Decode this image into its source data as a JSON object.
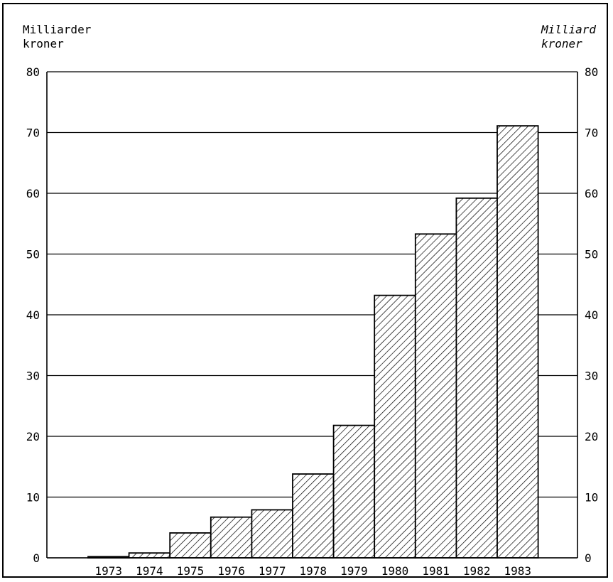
{
  "chart_data": {
    "type": "bar",
    "categories": [
      "1973",
      "1974",
      "1975",
      "1976",
      "1977",
      "1978",
      "1979",
      "1980",
      "1981",
      "1982",
      "1983"
    ],
    "values": [
      0.2,
      0.8,
      4.1,
      6.7,
      7.9,
      13.8,
      21.8,
      43.2,
      53.3,
      59.2,
      71.1
    ],
    "ylabel_left": [
      "Milliarder",
      "kroner"
    ],
    "ylabel_right": [
      "Milliard",
      "kroner"
    ],
    "ylim": [
      0,
      80
    ],
    "yticks": [
      "0",
      "10",
      "20",
      "30",
      "40",
      "50",
      "60",
      "70",
      "80"
    ],
    "grid": true,
    "fill": "diagonal-hatch",
    "colors": {
      "ink": "#000000",
      "background": "#ffffff"
    }
  }
}
